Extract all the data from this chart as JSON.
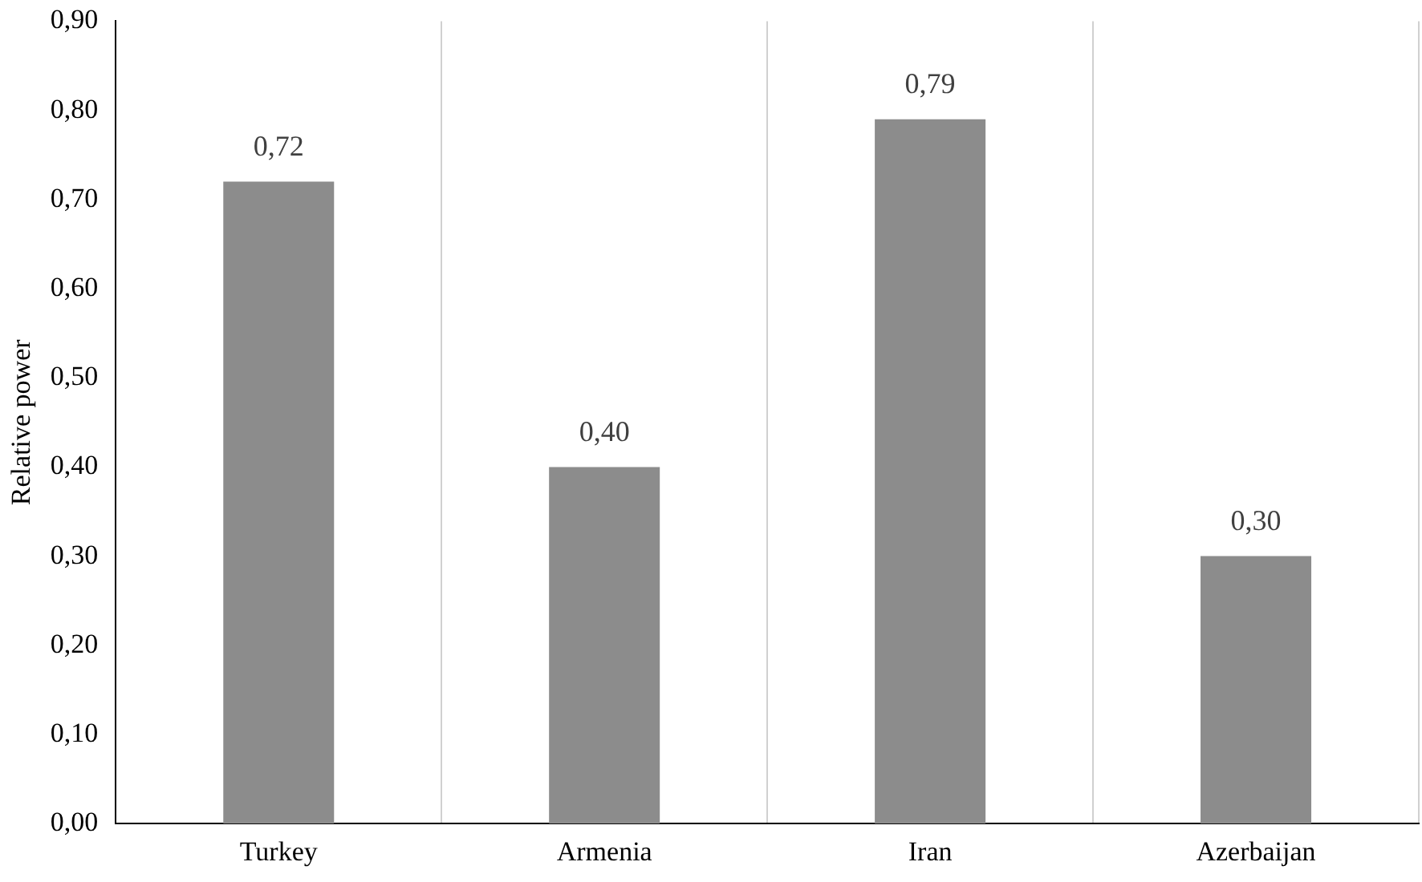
{
  "chart_data": {
    "type": "bar",
    "ylabel": "Relative power",
    "categories": [
      "Turkey",
      "Armenia",
      "Iran",
      "Azerbaijan"
    ],
    "values": [
      0.72,
      0.4,
      0.79,
      0.3
    ],
    "color": "#8c8c8c",
    "value_labels": [
      "0,72",
      "0,40",
      "0,79",
      "0,30"
    ],
    "ylim": [
      0,
      0.9
    ],
    "yticks": [
      {
        "value": 0,
        "label": "0,00"
      },
      {
        "value": 0.1,
        "label": "0,10"
      },
      {
        "value": 0.2,
        "label": "0,20"
      },
      {
        "value": 0.3,
        "label": "0,30"
      },
      {
        "value": 0.4,
        "label": "0,40"
      },
      {
        "value": 0.5,
        "label": "0,50"
      },
      {
        "value": 0.6,
        "label": "0,60"
      },
      {
        "value": 0.7,
        "label": "0,70"
      },
      {
        "value": 0.8,
        "label": "0,80"
      },
      {
        "value": 0.9,
        "label": "0,90"
      }
    ],
    "grid": "x",
    "legend": false
  }
}
